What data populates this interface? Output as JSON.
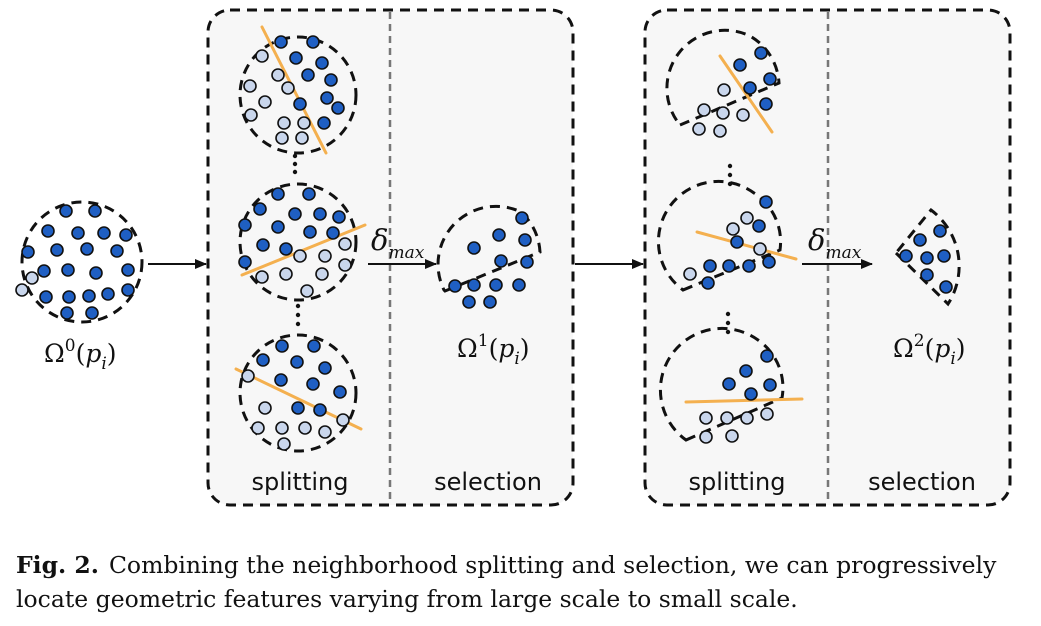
{
  "labels": {
    "omega": "Ω",
    "p": "p",
    "i": "i",
    "delta": "δ",
    "max": "max",
    "sup0": "0",
    "sup1": "1",
    "sup2": "2",
    "splitting": "splitting",
    "selection": "selection",
    "lparen": "(",
    "rparen": ")"
  },
  "caption": {
    "fig_label": "Fig. 2.",
    "text": "Combining the neighborhood splitting and selection, we can progressively locate geometric features varying from large scale to small scale."
  },
  "colors": {
    "dot_dark": "#1f5fc3",
    "dot_light": "#c9d6ec",
    "split_line": "#f4b04f",
    "panel_fill": "#f7f7f7",
    "stroke": "#111111",
    "divider": "#777777"
  }
}
